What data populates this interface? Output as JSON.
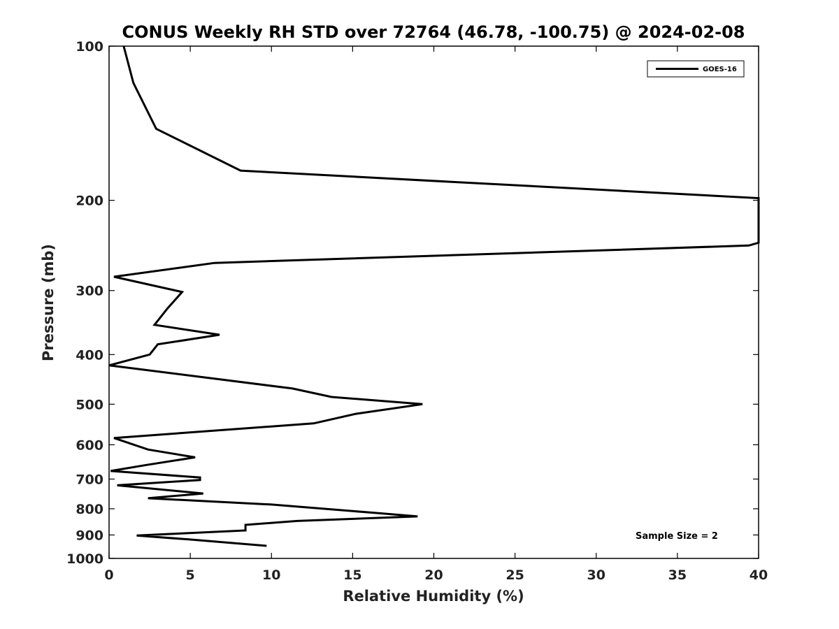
{
  "chart_data": {
    "type": "line",
    "title": "CONUS Weekly RH STD over 72764 (46.78, -100.75) @ 2024-02-08",
    "xlabel": "Relative Humidity (%)",
    "ylabel": "Pressure (mb)",
    "xlim": [
      0,
      40
    ],
    "ylim": [
      100,
      1000
    ],
    "y_scale": "log",
    "y_reversed": true,
    "xticks": [
      0,
      5,
      10,
      15,
      20,
      25,
      30,
      35,
      40
    ],
    "yticks": [
      100,
      200,
      300,
      400,
      500,
      600,
      700,
      800,
      900,
      1000
    ],
    "xtick_labels": [
      "0",
      "5",
      "10",
      "15",
      "20",
      "25",
      "30",
      "35",
      "40"
    ],
    "ytick_labels": [
      "100",
      "200",
      "300",
      "400",
      "500",
      "600",
      "700",
      "800",
      "900",
      "1000"
    ],
    "grid": false,
    "legend_position": "top-right",
    "annotation": "Sample Size = 2",
    "color": "#000000",
    "series": [
      {
        "name": "GOES-16",
        "x": [
          0.9,
          1.5,
          2.9,
          8.1,
          21.0,
          40.0,
          40.0,
          39.4,
          6.5,
          0.3,
          4.5,
          3.6,
          2.8,
          6.8,
          3.0,
          2.5,
          0.0,
          11.3,
          13.7,
          19.3,
          15.2,
          12.6,
          0.3,
          2.4,
          5.3,
          2.3,
          0.1,
          5.6,
          5.6,
          0.5,
          5.8,
          2.4,
          10.0,
          16.4,
          19.0,
          11.6,
          8.4,
          8.4,
          1.7,
          4.9,
          9.7
        ],
        "y": [
          100,
          118,
          145,
          175,
          184,
          198,
          242,
          245,
          265,
          282,
          302,
          325,
          350,
          366,
          382,
          400,
          420,
          466,
          484,
          500,
          522,
          545,
          582,
          613,
          635,
          657,
          675,
          695,
          703,
          720,
          747,
          763,
          785,
          815,
          828,
          845,
          860,
          882,
          902,
          918,
          945
        ]
      }
    ]
  }
}
